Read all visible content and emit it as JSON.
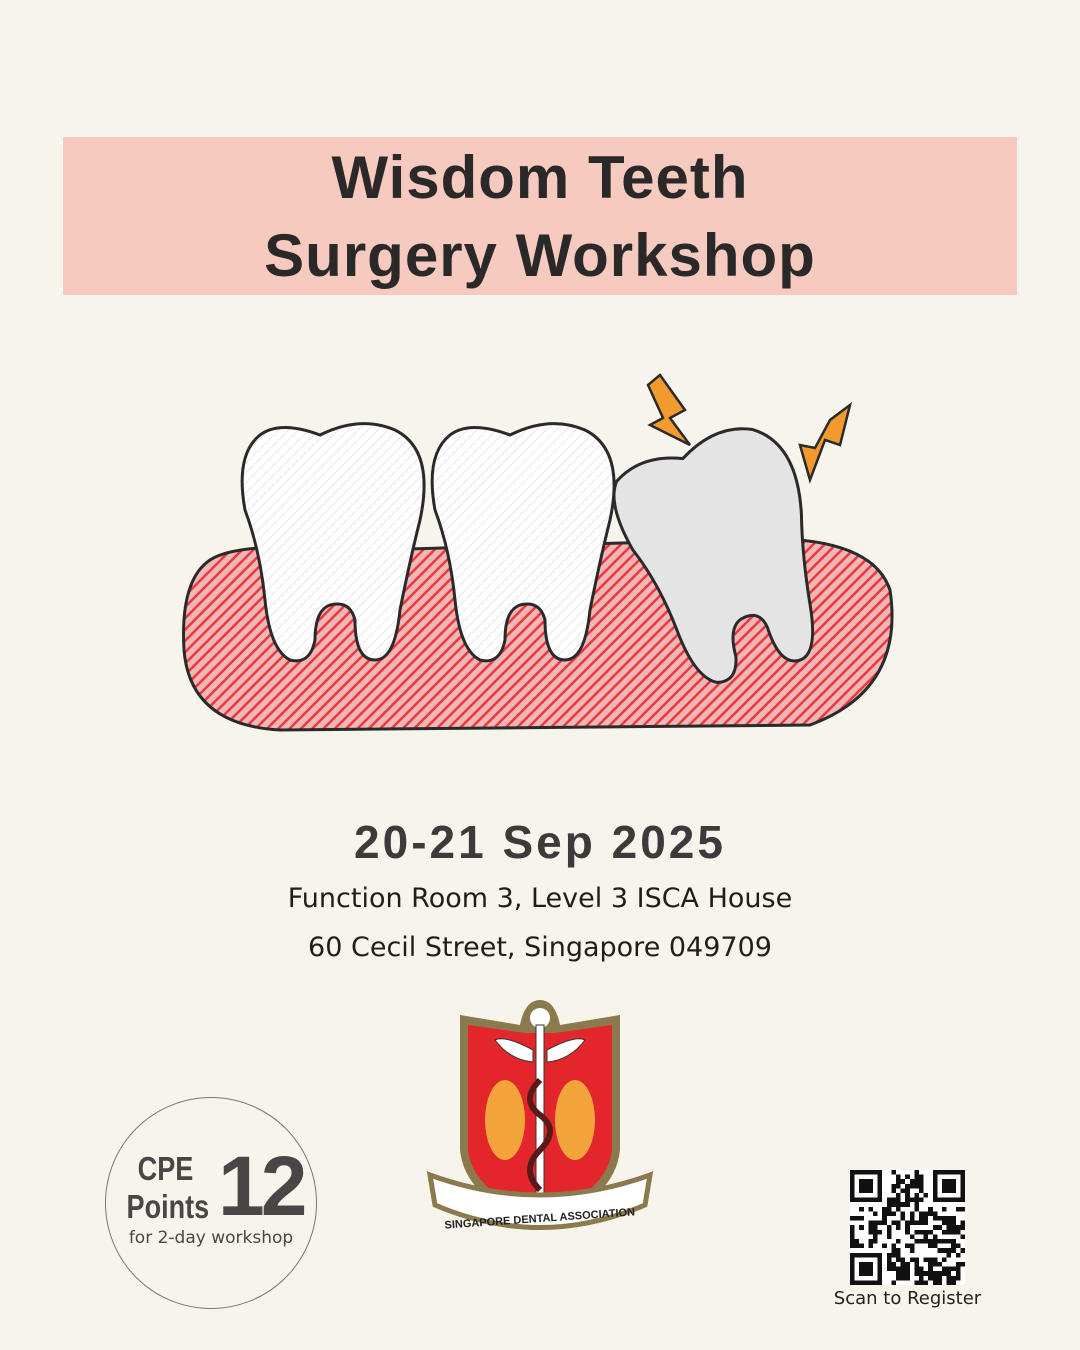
{
  "title": {
    "line1": "Wisdom Teeth",
    "line2": "Surgery Workshop"
  },
  "event": {
    "date": "20-21 Sep 2025",
    "venue_line1": "Function Room 3, Level 3 ISCA House",
    "venue_line2": "60 Cecil Street, Singapore 049709"
  },
  "cpe": {
    "label_line1": "CPE",
    "label_line2": "Points",
    "points": "12",
    "note": "for 2-day workshop"
  },
  "logo": {
    "text": "SINGAPORE DENTAL ASSOCIATION"
  },
  "register": {
    "caption": "Scan to Register",
    "icon": "qr-code-icon"
  },
  "colors": {
    "background": "#f7f4ec",
    "title_band": "#f6cabe",
    "gum": "#e8393d",
    "bolt": "#f29a2e",
    "shield": "#e3262b"
  }
}
